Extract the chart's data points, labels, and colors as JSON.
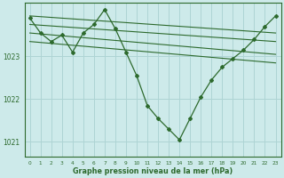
{
  "title": "Graphe pression niveau de la mer (hPa)",
  "background_color": "#cdeaea",
  "line_color": "#2d6a2d",
  "grid_color": "#aed4d4",
  "xlim": [
    -0.5,
    23.5
  ],
  "ylim": [
    1020.65,
    1024.25
  ],
  "yticks": [
    1021,
    1022,
    1023
  ],
  "xticks": [
    0,
    1,
    2,
    3,
    4,
    5,
    6,
    7,
    8,
    9,
    10,
    11,
    12,
    13,
    14,
    15,
    16,
    17,
    18,
    19,
    20,
    21,
    22,
    23
  ],
  "series": [
    {
      "x": [
        0,
        1,
        2,
        3,
        4,
        5,
        6,
        7,
        8,
        9,
        10,
        11,
        12,
        13,
        14,
        15,
        16,
        17,
        18,
        19,
        20,
        21,
        22,
        23
      ],
      "y": [
        1023.9,
        1023.55,
        1023.35,
        1023.5,
        1023.1,
        1023.55,
        1023.75,
        1024.1,
        1023.65,
        1023.1,
        1022.55,
        1021.85,
        1021.55,
        1021.3,
        1021.05,
        1021.55,
        1022.05,
        1022.45,
        1022.75,
        1022.95,
        1023.15,
        1023.4,
        1023.7,
        1023.95
      ]
    },
    {
      "x": [
        0,
        23
      ],
      "y": [
        1023.95,
        1023.55
      ]
    },
    {
      "x": [
        0,
        23
      ],
      "y": [
        1023.75,
        1023.35
      ]
    },
    {
      "x": [
        0,
        23
      ],
      "y": [
        1023.55,
        1023.05
      ]
    },
    {
      "x": [
        0,
        23
      ],
      "y": [
        1023.35,
        1022.85
      ]
    }
  ]
}
